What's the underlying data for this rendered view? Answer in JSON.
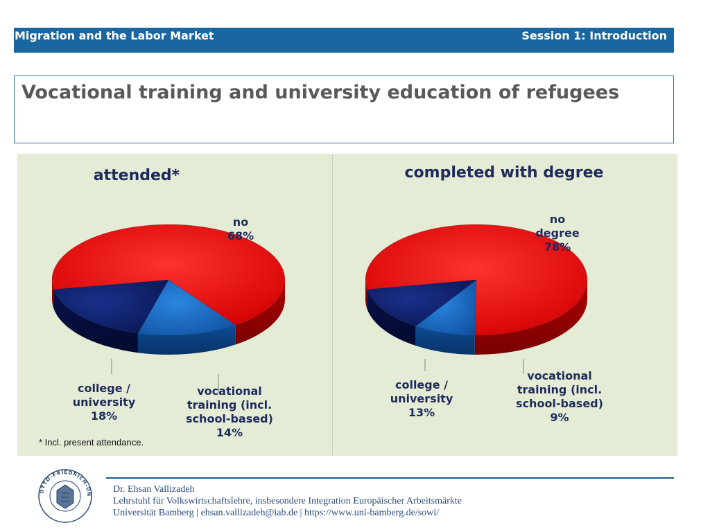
{
  "header": {
    "left_text": "Migration and the Labor Market",
    "right_text": "Session 1: Introduction"
  },
  "slide": {
    "title": "Vocational training and university education of refugees",
    "footnote": "* Incl. present attendance."
  },
  "chart_data": [
    {
      "type": "pie",
      "title": "attended*",
      "slices": [
        {
          "label": "no",
          "value": 68,
          "color": "#e01010"
        },
        {
          "label": "vocational training (incl. school-based)",
          "value": 14,
          "color": "#1565c0"
        },
        {
          "label": "college / university",
          "value": 18,
          "color": "#0d1f66"
        }
      ],
      "label_lines": {
        "no": [
          "no",
          "68%"
        ],
        "vocational": [
          "vocational",
          "training (incl.",
          "school-based)",
          "14%"
        ],
        "college": [
          "college /",
          "university",
          "18%"
        ]
      }
    },
    {
      "type": "pie",
      "title": "completed with degree",
      "slices": [
        {
          "label": "no degree",
          "value": 78,
          "color": "#e01010"
        },
        {
          "label": "vocational training (incl. school-based)",
          "value": 9,
          "color": "#1565c0"
        },
        {
          "label": "college / university",
          "value": 13,
          "color": "#0d1f66"
        }
      ],
      "label_lines": {
        "no": [
          "no",
          "degree",
          "78%"
        ],
        "vocational": [
          "vocational",
          "training (incl.",
          "school-based)",
          "9%"
        ],
        "college": [
          "college /",
          "university",
          "13%"
        ]
      }
    }
  ],
  "footer": {
    "name": "Dr. Ehsan Vallizadeh",
    "chair": "Lehrstuhl für Volkswirtschaftslehre, insbesondere Integration Europäischer Arbeitsmärkte",
    "contact": "Universität Bamberg | ehsan.vallizadeh@iab.de | https://www.uni-bamberg.de/sowi/",
    "seal_text": "OTTO-FRIEDRICH-UNIVERSITÄT BAMBERG"
  }
}
